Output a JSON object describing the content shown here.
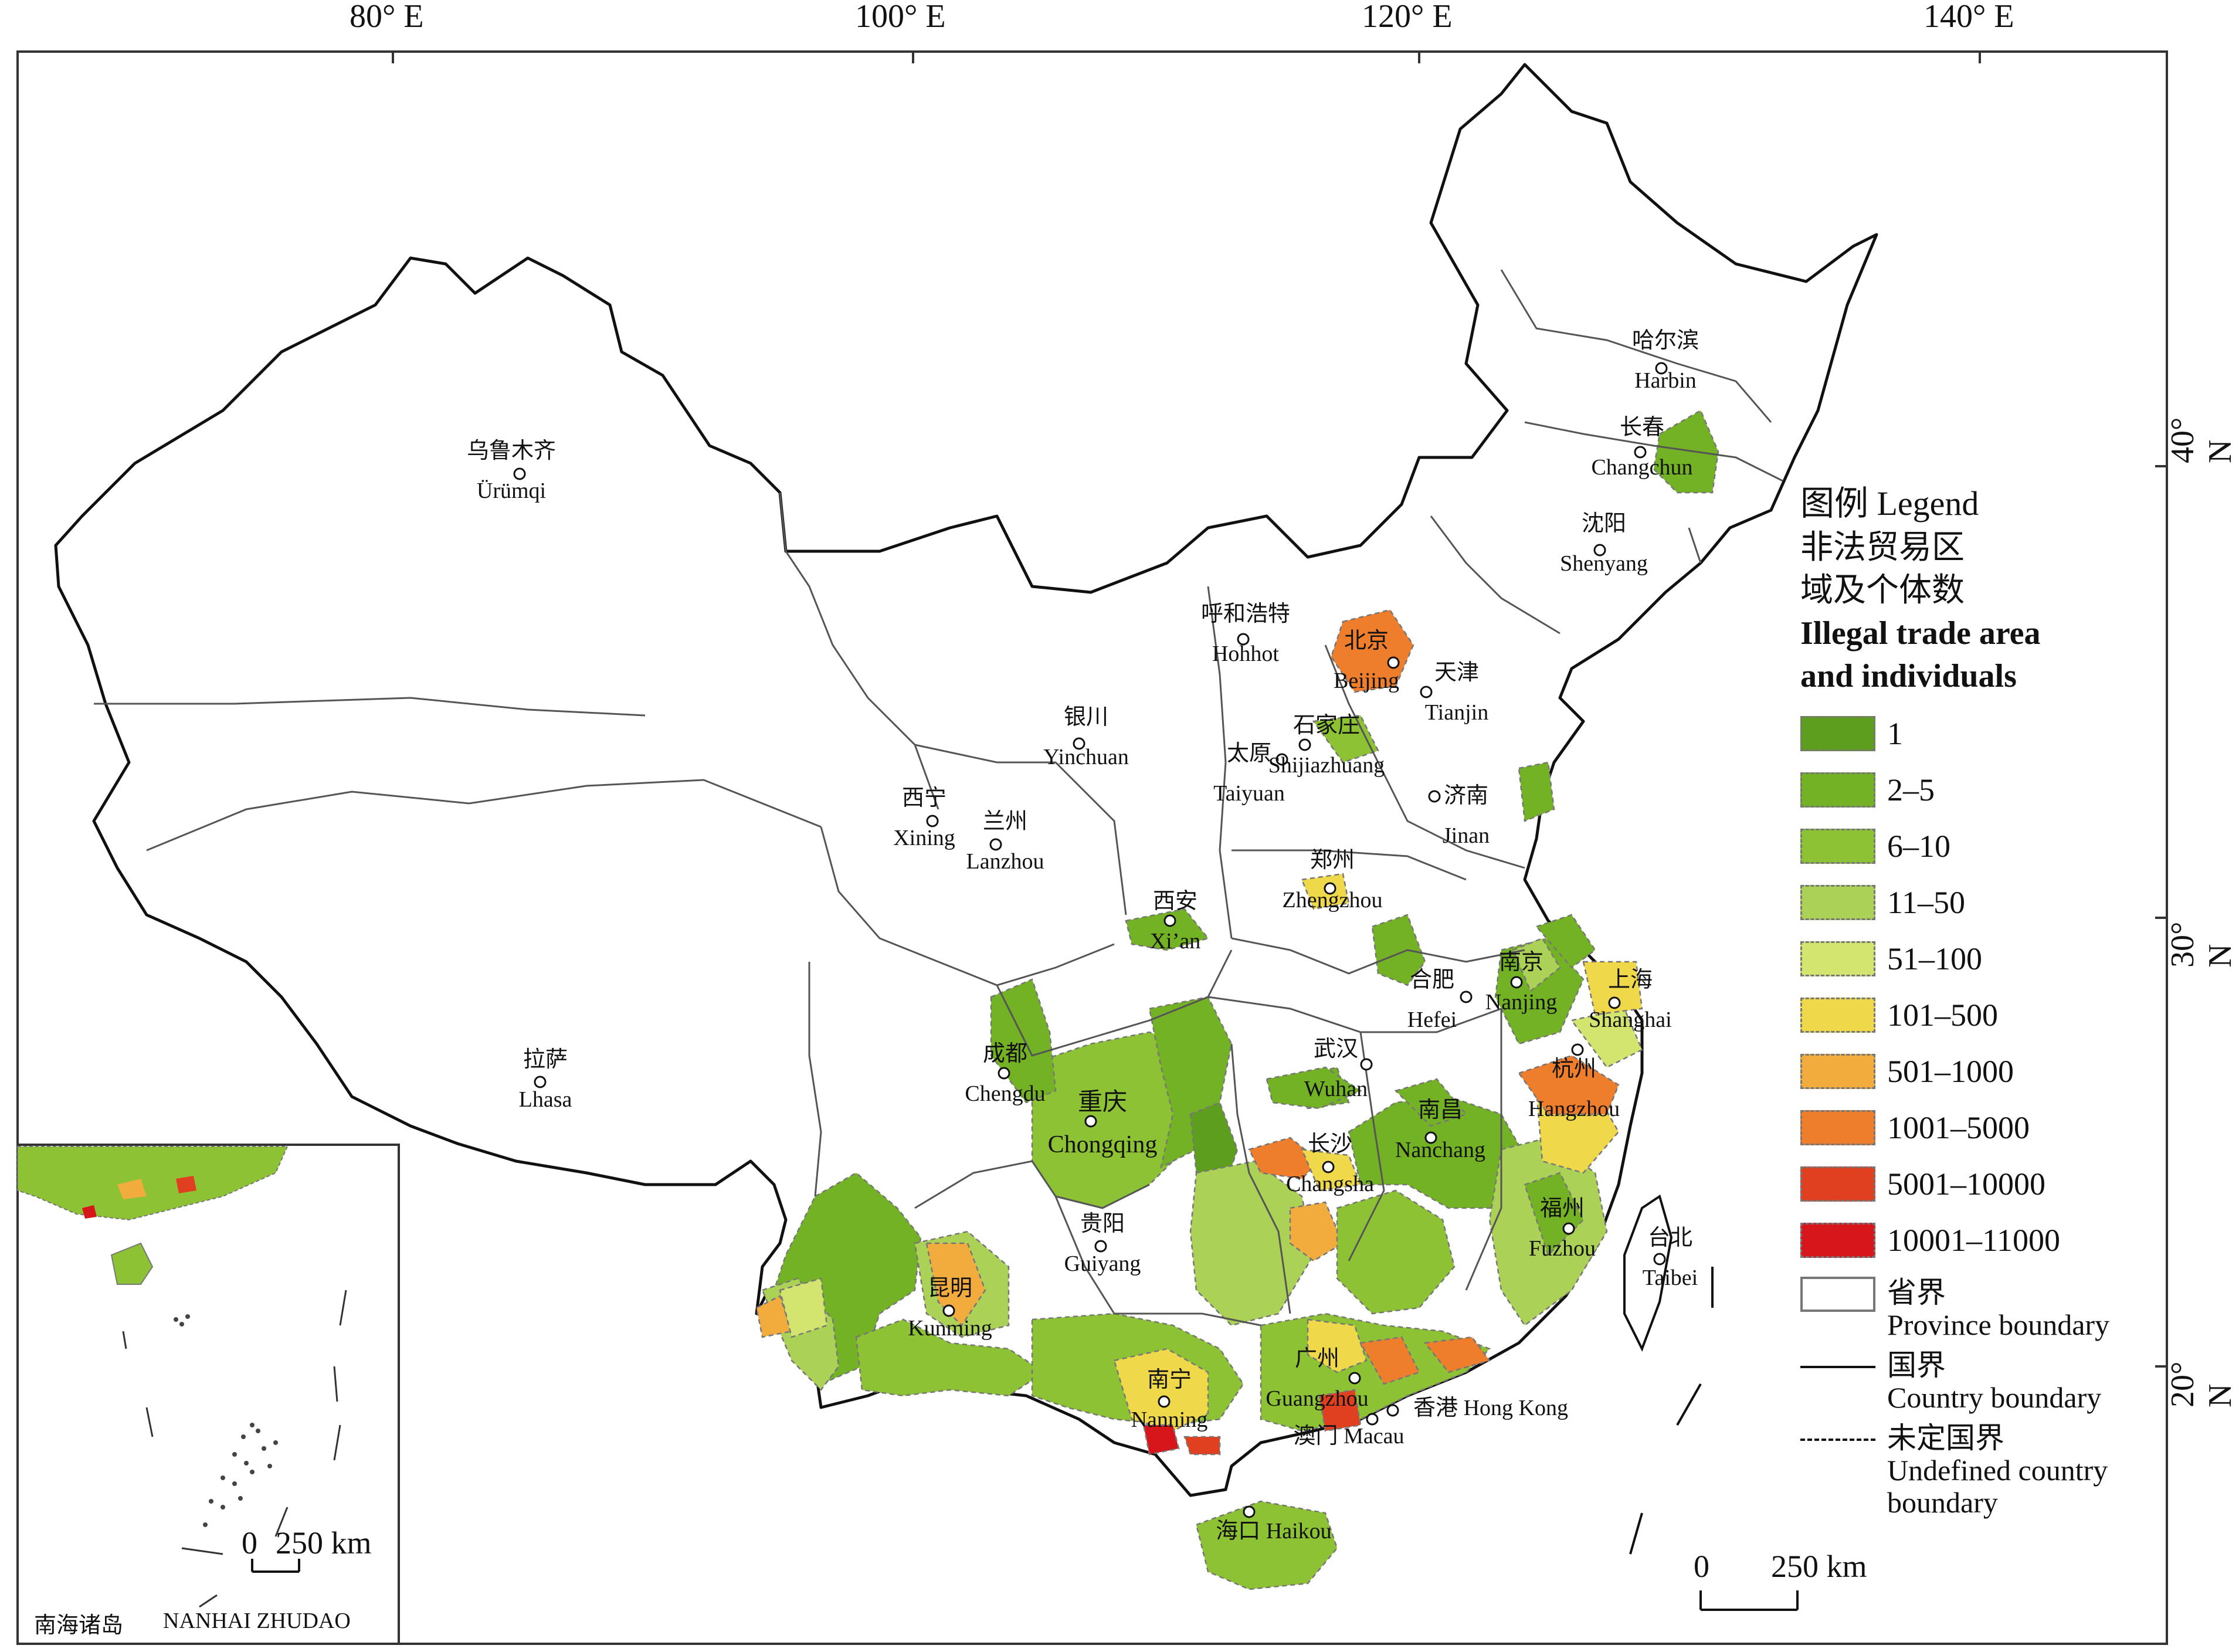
{
  "axes": {
    "lon_labels": [
      "80° E",
      "100° E",
      "120° E",
      "140° E"
    ],
    "lat_labels": [
      "40° N",
      "30° N",
      "20° N"
    ]
  },
  "cities": [
    {
      "id": "urumqi",
      "zh": "乌鲁木齐",
      "en": "Ürümqi"
    },
    {
      "id": "harbin",
      "zh": "哈尔滨",
      "en": "Harbin"
    },
    {
      "id": "changchun",
      "zh": "长春",
      "en": "Changchun"
    },
    {
      "id": "shenyang",
      "zh": "沈阳",
      "en": "Shenyang"
    },
    {
      "id": "hohhot",
      "zh": "呼和浩特",
      "en": "Hohhot"
    },
    {
      "id": "beijing",
      "zh": "北京",
      "en": "Beijing"
    },
    {
      "id": "tianjin",
      "zh": "天津",
      "en": "Tianjin"
    },
    {
      "id": "shijiazhuang",
      "zh": "石家庄",
      "en": "Shijiazhuang"
    },
    {
      "id": "yinchuan",
      "zh": "银川",
      "en": "Yinchuan"
    },
    {
      "id": "taiyuan",
      "zh": "太原",
      "en": "Taiyuan"
    },
    {
      "id": "jinan",
      "zh": "济南",
      "en": "Jinan"
    },
    {
      "id": "xining",
      "zh": "西宁",
      "en": "Xining"
    },
    {
      "id": "lanzhou",
      "zh": "兰州",
      "en": "Lanzhou"
    },
    {
      "id": "zhengzhou",
      "zh": "郑州",
      "en": "Zhengzhou"
    },
    {
      "id": "xian",
      "zh": "西安",
      "en": "Xi’an"
    },
    {
      "id": "nanjing",
      "zh": "南京",
      "en": "Nanjing"
    },
    {
      "id": "shanghai",
      "zh": "上海",
      "en": "Shanghai"
    },
    {
      "id": "hefei",
      "zh": "合肥",
      "en": "Hefei"
    },
    {
      "id": "lhasa",
      "zh": "拉萨",
      "en": "Lhasa"
    },
    {
      "id": "chengdu",
      "zh": "成都",
      "en": "Chengdu"
    },
    {
      "id": "wuhan",
      "zh": "武汉",
      "en": "Wuhan"
    },
    {
      "id": "hangzhou",
      "zh": "杭州",
      "en": "Hangzhou"
    },
    {
      "id": "chongqing",
      "zh": "重庆",
      "en": "Chongqing"
    },
    {
      "id": "changsha",
      "zh": "长沙",
      "en": "Changsha"
    },
    {
      "id": "nanchang",
      "zh": "南昌",
      "en": "Nanchang"
    },
    {
      "id": "guiyang",
      "zh": "贵阳",
      "en": "Guiyang"
    },
    {
      "id": "fuzhou",
      "zh": "福州",
      "en": "Fuzhou"
    },
    {
      "id": "taibei",
      "zh": "台北",
      "en": "Taibei"
    },
    {
      "id": "kunming",
      "zh": "昆明",
      "en": "Kunming"
    },
    {
      "id": "nanning",
      "zh": "南宁",
      "en": "Nanning"
    },
    {
      "id": "guangzhou",
      "zh": "广州",
      "en": "Guangzhou"
    },
    {
      "id": "hongkong",
      "zh": "香港",
      "en": "Hong Kong"
    },
    {
      "id": "macau",
      "zh": "澳门",
      "en": "Macau"
    },
    {
      "id": "haikou",
      "zh": "海口",
      "en": "Haikou"
    }
  ],
  "legend": {
    "title": "图例 Legend",
    "subtitle_zh_1": "非法贸易区",
    "subtitle_zh_2": "域及个体数",
    "subtitle_en_1": "Illegal trade area",
    "subtitle_en_2": "and individuals",
    "classes": [
      {
        "label": "1",
        "color": "#5e9e1f"
      },
      {
        "label": "2–5",
        "color": "#74b225"
      },
      {
        "label": "6–10",
        "color": "#8cc234"
      },
      {
        "label": "11–50",
        "color": "#abd157"
      },
      {
        "label": "51–100",
        "color": "#d3e46f"
      },
      {
        "label": "101–500",
        "color": "#efd94a"
      },
      {
        "label": "501–1000",
        "color": "#f2ab3d"
      },
      {
        "label": "1001–5000",
        "color": "#ee7d2c"
      },
      {
        "label": "5001–10000",
        "color": "#e0401f"
      },
      {
        "label": "10001–11000",
        "color": "#d7161b"
      }
    ],
    "province_zh": "省界",
    "province_en": "Province boundary",
    "country_zh": "国界",
    "country_en": "Country boundary",
    "undefined_zh": "未定国界",
    "undefined_en_1": "Undefined country",
    "undefined_en_2": "boundary"
  },
  "scale": {
    "zero": "0",
    "label": "250 km"
  },
  "inset": {
    "zero": "0",
    "label": "250 km",
    "name_zh": "南海诸岛",
    "name_en": "NANHAI ZHUDAO"
  }
}
